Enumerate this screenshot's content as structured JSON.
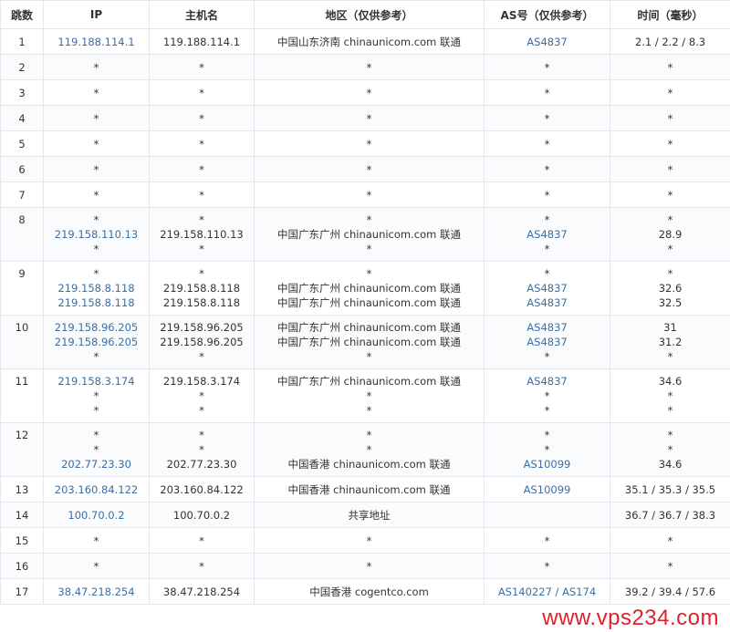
{
  "headers": [
    "跳数",
    "IP",
    "主机名",
    "地区（仅供参考）",
    "AS号（仅供参考）",
    "时间（毫秒）"
  ],
  "rows": [
    {
      "hop": "1",
      "lines": [
        [
          "119.188.114.1",
          "119.188.114.1",
          "中国山东济南 chinaunicom.com 联通",
          "AS4837",
          "2.1 / 2.2 / 8.3"
        ]
      ]
    },
    {
      "hop": "2",
      "lines": [
        [
          "*",
          "*",
          "*",
          "*",
          "*"
        ]
      ]
    },
    {
      "hop": "3",
      "lines": [
        [
          "*",
          "*",
          "*",
          "*",
          "*"
        ]
      ]
    },
    {
      "hop": "4",
      "lines": [
        [
          "*",
          "*",
          "*",
          "*",
          "*"
        ]
      ]
    },
    {
      "hop": "5",
      "lines": [
        [
          "*",
          "*",
          "*",
          "*",
          "*"
        ]
      ]
    },
    {
      "hop": "6",
      "lines": [
        [
          "*",
          "*",
          "*",
          "*",
          "*"
        ]
      ]
    },
    {
      "hop": "7",
      "lines": [
        [
          "*",
          "*",
          "*",
          "*",
          "*"
        ]
      ]
    },
    {
      "hop": "8",
      "lines": [
        [
          "*",
          "*",
          "*",
          "*",
          "*"
        ],
        [
          "219.158.110.13",
          "219.158.110.13",
          "中国广东广州 chinaunicom.com 联通",
          "AS4837",
          "28.9"
        ],
        [
          "*",
          "*",
          "*",
          "*",
          "*"
        ]
      ]
    },
    {
      "hop": "9",
      "lines": [
        [
          "*",
          "*",
          "*",
          "*",
          "*"
        ],
        [
          "219.158.8.118",
          "219.158.8.118",
          "中国广东广州 chinaunicom.com 联通",
          "AS4837",
          "32.6"
        ],
        [
          "219.158.8.118",
          "219.158.8.118",
          "中国广东广州 chinaunicom.com 联通",
          "AS4837",
          "32.5"
        ]
      ]
    },
    {
      "hop": "10",
      "lines": [
        [
          "219.158.96.205",
          "219.158.96.205",
          "中国广东广州 chinaunicom.com 联通",
          "AS4837",
          "31"
        ],
        [
          "219.158.96.205",
          "219.158.96.205",
          "中国广东广州 chinaunicom.com 联通",
          "AS4837",
          "31.2"
        ],
        [
          "*",
          "*",
          "*",
          "*",
          "*"
        ]
      ]
    },
    {
      "hop": "11",
      "lines": [
        [
          "219.158.3.174",
          "219.158.3.174",
          "中国广东广州 chinaunicom.com 联通",
          "AS4837",
          "34.6"
        ],
        [
          "*",
          "*",
          "*",
          "*",
          "*"
        ],
        [
          "*",
          "*",
          "*",
          "*",
          "*"
        ]
      ]
    },
    {
      "hop": "12",
      "lines": [
        [
          "*",
          "*",
          "*",
          "*",
          "*"
        ],
        [
          "*",
          "*",
          "*",
          "*",
          "*"
        ],
        [
          "202.77.23.30",
          "202.77.23.30",
          "中国香港 chinaunicom.com 联通",
          "AS10099",
          "34.6"
        ]
      ]
    },
    {
      "hop": "13",
      "lines": [
        [
          "203.160.84.122",
          "203.160.84.122",
          "中国香港 chinaunicom.com 联通",
          "AS10099",
          "35.1 / 35.3 / 35.5"
        ]
      ]
    },
    {
      "hop": "14",
      "lines": [
        [
          "100.70.0.2",
          "100.70.0.2",
          "共享地址",
          "",
          "36.7 / 36.7 / 38.3"
        ]
      ]
    },
    {
      "hop": "15",
      "lines": [
        [
          "*",
          "*",
          "*",
          "*",
          "*"
        ]
      ]
    },
    {
      "hop": "16",
      "lines": [
        [
          "*",
          "*",
          "*",
          "*",
          "*"
        ]
      ]
    },
    {
      "hop": "17",
      "lines": [
        [
          "38.47.218.254",
          "38.47.218.254",
          "中国香港 cogentco.com",
          "AS140227 / AS174",
          "39.2 / 39.4 / 57.6"
        ]
      ]
    }
  ],
  "watermark": "www.vps234.com",
  "colors": {
    "link": "#3a6ea5",
    "watermark": "#e0202a",
    "border": "#e4e7ed"
  }
}
